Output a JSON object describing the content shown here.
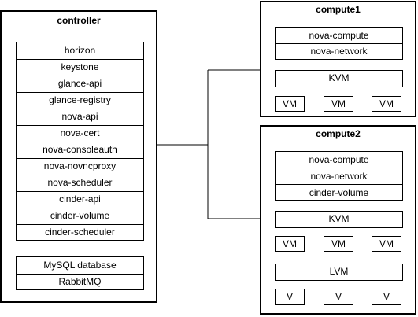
{
  "controller": {
    "title": "controller",
    "services": [
      "horizon",
      "keystone",
      "glance-api",
      "glance-registry",
      "nova-api",
      "nova-cert",
      "nova-consoleauth",
      "nova-novncproxy",
      "nova-scheduler",
      "cinder-api",
      "cinder-volume",
      "cinder-scheduler"
    ],
    "backends": [
      "MySQL database",
      "RabbitMQ"
    ]
  },
  "compute1": {
    "title": "compute1",
    "services": [
      "nova-compute",
      "nova-network"
    ],
    "hypervisor": "KVM",
    "vms": [
      "VM",
      "VM",
      "VM"
    ]
  },
  "compute2": {
    "title": "compute2",
    "services": [
      "nova-compute",
      "nova-network",
      "cinder-volume"
    ],
    "hypervisor": "KVM",
    "vms": [
      "VM",
      "VM",
      "VM"
    ],
    "storage": "LVM",
    "volumes": [
      "V",
      "V",
      "V"
    ]
  }
}
